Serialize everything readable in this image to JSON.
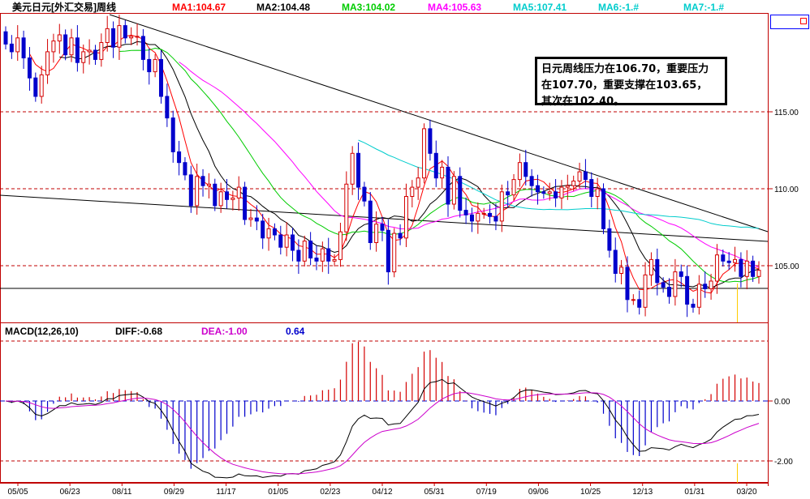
{
  "header": {
    "title": "美元日元[外汇交易]周线",
    "ma": [
      {
        "label": "MA1:104.67",
        "color": "#ff0000"
      },
      {
        "label": "MA2:104.48",
        "color": "#000000"
      },
      {
        "label": "MA3:104.02",
        "color": "#00cc00"
      },
      {
        "label": "MA4:105.63",
        "color": "#ff00ff"
      },
      {
        "label": "MA5:107.41",
        "color": "#00cccc"
      },
      {
        "label": "MA6:-1.#",
        "color": "#00cccc"
      },
      {
        "label": "MA7:-1.#",
        "color": "#00cccc"
      }
    ]
  },
  "note": {
    "lines": [
      "日元周线压力在106.70，重要压力",
      "在107.70，重要支撑在103.65，",
      "其次在102.40。"
    ]
  },
  "macd_header": {
    "label": "MACD(12,26,10)",
    "diff": "DIFF:-0.68",
    "dea": "DEA:-1.00",
    "macd": "0.64"
  },
  "colors": {
    "up": "#d40000",
    "down": "#0000cc",
    "ma1": "#ff0000",
    "ma2": "#000000",
    "ma3": "#00cc00",
    "ma4": "#ff00ff",
    "ma5": "#00cccc",
    "grid": "#c00000"
  },
  "chart_data": [
    {
      "type": "candlestick",
      "title": "美元日元[外汇交易]周线",
      "x_ticks": [
        "05/05",
        "06/23",
        "08/11",
        "09/29",
        "11/17",
        "01/05",
        "02/23",
        "04/12",
        "05/31",
        "07/19",
        "09/06",
        "10/25",
        "12/13",
        "01/31",
        "03/20"
      ],
      "y_ticks": [
        "115.00",
        "110.00",
        "105.00"
      ],
      "ylim": [
        101,
        121
      ],
      "reference_lines": [
        115,
        110,
        105,
        103.65
      ],
      "ma_last": {
        "MA1": 104.67,
        "MA2": 104.48,
        "MA3": 104.02,
        "MA4": 105.63,
        "MA5": 107.41
      },
      "closes": [
        119.4,
        118.9,
        119.8,
        118.5,
        117.2,
        116.0,
        117.4,
        118.9,
        119.6,
        120.0,
        118.7,
        119.8,
        118.2,
        118.9,
        119.0,
        118.4,
        119.5,
        120.4,
        119.2,
        120.6,
        119.8,
        119.9,
        119.9,
        118.4,
        117.6,
        118.4,
        116.0,
        114.6,
        112.4,
        111.7,
        110.9,
        108.9,
        110.8,
        110.2,
        110.3,
        108.9,
        109.8,
        109.3,
        109.4,
        110.1,
        108.0,
        108.1,
        107.9,
        106.8,
        107.4,
        107.0,
        106.2,
        107.0,
        106.0,
        105.3,
        106.6,
        105.5,
        105.3,
        106.1,
        105.3,
        105.4,
        107.2,
        110.3,
        112.3,
        110.1,
        109.2,
        106.5,
        107.7,
        107.3,
        104.6,
        107.1,
        106.8,
        109.5,
        110.1,
        110.7,
        113.9,
        112.3,
        110.7,
        111.4,
        109.0,
        110.8,
        108.6,
        108.3,
        107.9,
        108.4,
        108.4,
        108.2,
        107.9,
        109.8,
        109.6,
        110.6,
        111.7,
        110.8,
        110.2,
        109.8,
        109.7,
        109.8,
        109.4,
        110.1,
        110.2,
        110.5,
        111.1,
        110.6,
        109.5,
        110.0,
        107.4,
        106.0,
        104.5,
        104.9,
        102.8,
        102.8,
        102.3,
        104.4,
        105.4,
        103.9,
        103.6,
        103.0,
        104.6,
        104.3,
        102.5,
        102.3,
        103.8,
        103.5,
        104.0,
        105.7,
        105.3,
        105.2,
        105.4,
        104.3,
        105.3,
        104.3,
        104.7
      ],
      "macd_panel": {
        "title": "MACD(12,26,10)",
        "diff_last": -0.68,
        "dea_last": -1.0,
        "macd_last": 0.64,
        "y_ticks": [
          "0.00",
          "-2.00"
        ],
        "ylim": [
          -2.5,
          2.0
        ]
      }
    }
  ]
}
